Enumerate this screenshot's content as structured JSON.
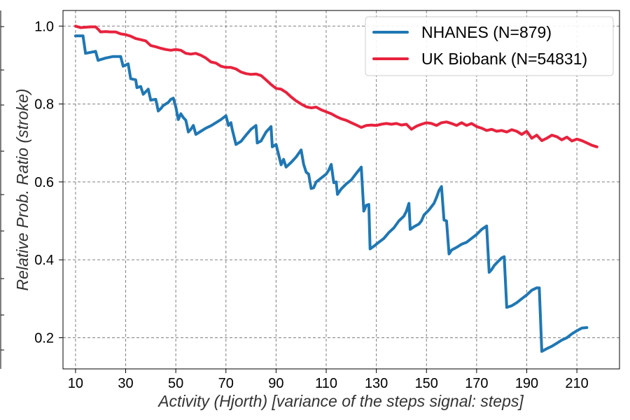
{
  "chart_data": {
    "type": "line",
    "title": "",
    "xlabel": "Activity (Hjorth) [variance of the steps signal: steps]",
    "ylabel": "Relative Prob. Ratio (stroke)",
    "xlim": [
      5,
      227
    ],
    "ylim": [
      0.12,
      1.04
    ],
    "xticks": [
      10,
      30,
      50,
      70,
      90,
      110,
      130,
      150,
      170,
      190,
      210
    ],
    "yticks": [
      0.2,
      0.4,
      0.6,
      0.8,
      1.0
    ],
    "xtick_labels": [
      "10",
      "30",
      "50",
      "70",
      "90",
      "110",
      "130",
      "150",
      "170",
      "190",
      "210"
    ],
    "ytick_labels": [
      "0.2",
      "0.4",
      "0.6",
      "0.8",
      "1.0"
    ],
    "grid": true,
    "legend_position": "top-right",
    "series": [
      {
        "name": "NHANES (N=879)",
        "color": "#1f77b4",
        "points": [
          [
            10,
            0.975
          ],
          [
            13,
            0.975
          ],
          [
            14,
            0.93
          ],
          [
            18,
            0.935
          ],
          [
            19,
            0.912
          ],
          [
            22,
            0.918
          ],
          [
            25,
            0.922
          ],
          [
            28,
            0.922
          ],
          [
            29,
            0.897
          ],
          [
            31,
            0.903
          ],
          [
            32,
            0.865
          ],
          [
            34,
            0.862
          ],
          [
            34.5,
            0.842
          ],
          [
            36,
            0.845
          ],
          [
            37,
            0.825
          ],
          [
            39,
            0.838
          ],
          [
            40,
            0.81
          ],
          [
            42,
            0.812
          ],
          [
            43,
            0.782
          ],
          [
            44,
            0.788
          ],
          [
            45,
            0.796
          ],
          [
            47,
            0.804
          ],
          [
            48,
            0.812
          ],
          [
            49,
            0.815
          ],
          [
            50,
            0.793
          ],
          [
            51,
            0.76
          ],
          [
            52,
            0.775
          ],
          [
            53,
            0.765
          ],
          [
            54,
            0.758
          ],
          [
            55,
            0.728
          ],
          [
            56,
            0.735
          ],
          [
            57,
            0.745
          ],
          [
            58,
            0.722
          ],
          [
            60,
            0.73
          ],
          [
            62,
            0.738
          ],
          [
            64,
            0.744
          ],
          [
            66,
            0.752
          ],
          [
            68,
            0.76
          ],
          [
            70,
            0.77
          ],
          [
            71,
            0.745
          ],
          [
            72,
            0.752
          ],
          [
            72.5,
            0.735
          ],
          [
            74,
            0.696
          ],
          [
            75,
            0.7
          ],
          [
            76,
            0.704
          ],
          [
            78,
            0.72
          ],
          [
            80,
            0.735
          ],
          [
            82,
            0.745
          ],
          [
            82.5,
            0.7
          ],
          [
            84,
            0.705
          ],
          [
            86,
            0.728
          ],
          [
            88,
            0.742
          ],
          [
            88.5,
            0.69
          ],
          [
            90,
            0.696
          ],
          [
            92,
            0.644
          ],
          [
            93,
            0.658
          ],
          [
            94,
            0.638
          ],
          [
            96,
            0.65
          ],
          [
            98,
            0.664
          ],
          [
            100,
            0.682
          ],
          [
            101,
            0.645
          ],
          [
            102,
            0.625
          ],
          [
            103,
            0.62
          ],
          [
            104,
            0.583
          ],
          [
            105,
            0.585
          ],
          [
            106,
            0.6
          ],
          [
            108,
            0.61
          ],
          [
            110,
            0.62
          ],
          [
            111,
            0.63
          ],
          [
            112,
            0.645
          ],
          [
            113,
            0.598
          ],
          [
            114,
            0.6
          ],
          [
            114.5,
            0.568
          ],
          [
            116,
            0.582
          ],
          [
            118,
            0.595
          ],
          [
            120,
            0.605
          ],
          [
            122,
            0.622
          ],
          [
            124,
            0.638
          ],
          [
            125,
            0.525
          ],
          [
            126,
            0.54
          ],
          [
            127,
            0.542
          ],
          [
            127.5,
            0.428
          ],
          [
            129,
            0.435
          ],
          [
            131,
            0.445
          ],
          [
            133,
            0.455
          ],
          [
            135,
            0.47
          ],
          [
            137,
            0.482
          ],
          [
            139,
            0.5
          ],
          [
            141,
            0.512
          ],
          [
            142,
            0.525
          ],
          [
            143,
            0.545
          ],
          [
            143.5,
            0.478
          ],
          [
            145,
            0.485
          ],
          [
            147,
            0.492
          ],
          [
            148,
            0.5
          ],
          [
            149,
            0.515
          ],
          [
            151,
            0.528
          ],
          [
            153,
            0.545
          ],
          [
            154,
            0.56
          ],
          [
            155,
            0.578
          ],
          [
            156,
            0.588
          ],
          [
            157,
            0.502
          ],
          [
            158,
            0.5
          ],
          [
            159,
            0.415
          ],
          [
            160,
            0.425
          ],
          [
            162,
            0.432
          ],
          [
            164,
            0.44
          ],
          [
            166,
            0.445
          ],
          [
            168,
            0.455
          ],
          [
            170,
            0.465
          ],
          [
            172,
            0.478
          ],
          [
            174,
            0.487
          ],
          [
            175,
            0.368
          ],
          [
            176,
            0.375
          ],
          [
            177,
            0.385
          ],
          [
            178,
            0.392
          ],
          [
            180,
            0.405
          ],
          [
            181,
            0.408
          ],
          [
            182,
            0.278
          ],
          [
            184,
            0.282
          ],
          [
            186,
            0.29
          ],
          [
            188,
            0.3
          ],
          [
            190,
            0.31
          ],
          [
            192,
            0.322
          ],
          [
            194,
            0.328
          ],
          [
            195,
            0.328
          ],
          [
            196,
            0.165
          ],
          [
            198,
            0.172
          ],
          [
            200,
            0.178
          ],
          [
            202,
            0.186
          ],
          [
            204,
            0.194
          ],
          [
            206,
            0.2
          ],
          [
            208,
            0.21
          ],
          [
            210,
            0.218
          ],
          [
            212,
            0.225
          ],
          [
            214,
            0.226
          ]
        ]
      },
      {
        "name": "UK Biobank (N=54831)",
        "color": "#e8223d",
        "points": [
          [
            10,
            1.0
          ],
          [
            12,
            0.996
          ],
          [
            14,
            0.997
          ],
          [
            16,
            0.998
          ],
          [
            18,
            0.998
          ],
          [
            19,
            0.992
          ],
          [
            20,
            0.985
          ],
          [
            22,
            0.986
          ],
          [
            24,
            0.985
          ],
          [
            26,
            0.985
          ],
          [
            28,
            0.98
          ],
          [
            30,
            0.978
          ],
          [
            32,
            0.974
          ],
          [
            34,
            0.968
          ],
          [
            36,
            0.965
          ],
          [
            38,
            0.962
          ],
          [
            40,
            0.95
          ],
          [
            42,
            0.947
          ],
          [
            44,
            0.943
          ],
          [
            46,
            0.94
          ],
          [
            48,
            0.938
          ],
          [
            50,
            0.94
          ],
          [
            52,
            0.938
          ],
          [
            54,
            0.93
          ],
          [
            56,
            0.928
          ],
          [
            58,
            0.93
          ],
          [
            60,
            0.925
          ],
          [
            62,
            0.918
          ],
          [
            64,
            0.908
          ],
          [
            66,
            0.905
          ],
          [
            68,
            0.897
          ],
          [
            70,
            0.894
          ],
          [
            72,
            0.894
          ],
          [
            74,
            0.89
          ],
          [
            76,
            0.882
          ],
          [
            78,
            0.878
          ],
          [
            80,
            0.876
          ],
          [
            82,
            0.877
          ],
          [
            84,
            0.873
          ],
          [
            86,
            0.862
          ],
          [
            88,
            0.85
          ],
          [
            90,
            0.84
          ],
          [
            92,
            0.838
          ],
          [
            94,
            0.83
          ],
          [
            96,
            0.818
          ],
          [
            98,
            0.808
          ],
          [
            100,
            0.8
          ],
          [
            102,
            0.793
          ],
          [
            104,
            0.79
          ],
          [
            106,
            0.792
          ],
          [
            108,
            0.785
          ],
          [
            110,
            0.78
          ],
          [
            112,
            0.775
          ],
          [
            114,
            0.768
          ],
          [
            116,
            0.762
          ],
          [
            118,
            0.758
          ],
          [
            120,
            0.752
          ],
          [
            122,
            0.746
          ],
          [
            124,
            0.74
          ],
          [
            126,
            0.745
          ],
          [
            128,
            0.746
          ],
          [
            130,
            0.745
          ],
          [
            132,
            0.748
          ],
          [
            134,
            0.75
          ],
          [
            136,
            0.748
          ],
          [
            138,
            0.75
          ],
          [
            140,
            0.746
          ],
          [
            142,
            0.748
          ],
          [
            144,
            0.735
          ],
          [
            146,
            0.743
          ],
          [
            148,
            0.748
          ],
          [
            150,
            0.752
          ],
          [
            152,
            0.75
          ],
          [
            154,
            0.745
          ],
          [
            156,
            0.752
          ],
          [
            158,
            0.754
          ],
          [
            160,
            0.75
          ],
          [
            162,
            0.745
          ],
          [
            164,
            0.752
          ],
          [
            166,
            0.745
          ],
          [
            168,
            0.75
          ],
          [
            170,
            0.742
          ],
          [
            172,
            0.738
          ],
          [
            174,
            0.732
          ],
          [
            176,
            0.735
          ],
          [
            178,
            0.73
          ],
          [
            180,
            0.732
          ],
          [
            182,
            0.728
          ],
          [
            184,
            0.734
          ],
          [
            186,
            0.73
          ],
          [
            188,
            0.722
          ],
          [
            190,
            0.73
          ],
          [
            192,
            0.712
          ],
          [
            194,
            0.72
          ],
          [
            196,
            0.706
          ],
          [
            198,
            0.712
          ],
          [
            200,
            0.72
          ],
          [
            202,
            0.716
          ],
          [
            204,
            0.708
          ],
          [
            206,
            0.715
          ],
          [
            208,
            0.705
          ],
          [
            210,
            0.71
          ],
          [
            212,
            0.706
          ],
          [
            214,
            0.7
          ],
          [
            216,
            0.694
          ],
          [
            218,
            0.69
          ]
        ]
      }
    ]
  }
}
